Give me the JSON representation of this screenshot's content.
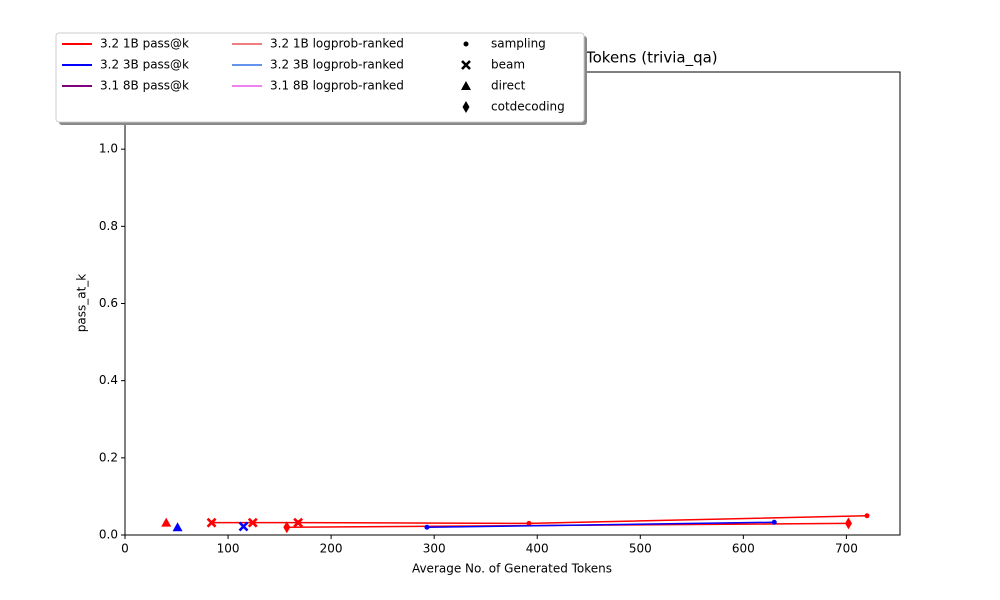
{
  "chart_data": {
    "type": "line",
    "title": "Tokens (trivia_qa)",
    "xlabel": "Average No. of Generated Tokens",
    "ylabel": "pass_at_k",
    "xlim": [
      0,
      752
    ],
    "xticks": [
      0,
      100,
      200,
      300,
      400,
      500,
      600,
      700
    ],
    "ylim": [
      0,
      1.2
    ],
    "yticks": [
      0.0,
      0.2,
      0.4,
      0.6,
      0.8,
      1.0
    ],
    "yticks_labels": [
      "0.0",
      "0.2",
      "0.4",
      "0.6",
      "0.8",
      "1.0"
    ],
    "markers": [
      "sampling",
      "beam",
      "direct",
      "cotdecoding"
    ],
    "series": [
      {
        "name": "3.2 1B pass@k",
        "color": "#ff0000",
        "groups": [
          {
            "marker": "sampling",
            "x": [
              168,
              392,
              720
            ],
            "values": [
              0.032,
              0.03,
              0.05
            ]
          },
          {
            "marker": "beam",
            "x": [
              84,
              124,
              168
            ],
            "values": [
              0.032,
              0.032,
              0.032
            ]
          },
          {
            "marker": "direct",
            "x": [
              40
            ],
            "values": [
              0.032
            ]
          },
          {
            "marker": "cotdecoding",
            "x": [
              157,
              702
            ],
            "values": [
              0.02,
              0.03
            ]
          }
        ]
      },
      {
        "name": "3.2 3B pass@k",
        "color": "#0000ff",
        "groups": [
          {
            "marker": "sampling",
            "x": [
              293,
              630
            ],
            "values": [
              0.02,
              0.033
            ]
          },
          {
            "marker": "beam",
            "x": [
              115
            ],
            "values": [
              0.022
            ]
          },
          {
            "marker": "direct",
            "x": [
              51
            ],
            "values": [
              0.02
            ]
          }
        ]
      },
      {
        "name": "3.1 8B pass@k",
        "color": "#800080",
        "groups": []
      },
      {
        "name": "3.2 1B logprob-ranked",
        "color": "#f08080",
        "groups": []
      },
      {
        "name": "3.2 3B logprob-ranked",
        "color": "#6495ed",
        "groups": []
      },
      {
        "name": "3.1 8B logprob-ranked",
        "color": "#ee82ee",
        "groups": []
      }
    ]
  }
}
